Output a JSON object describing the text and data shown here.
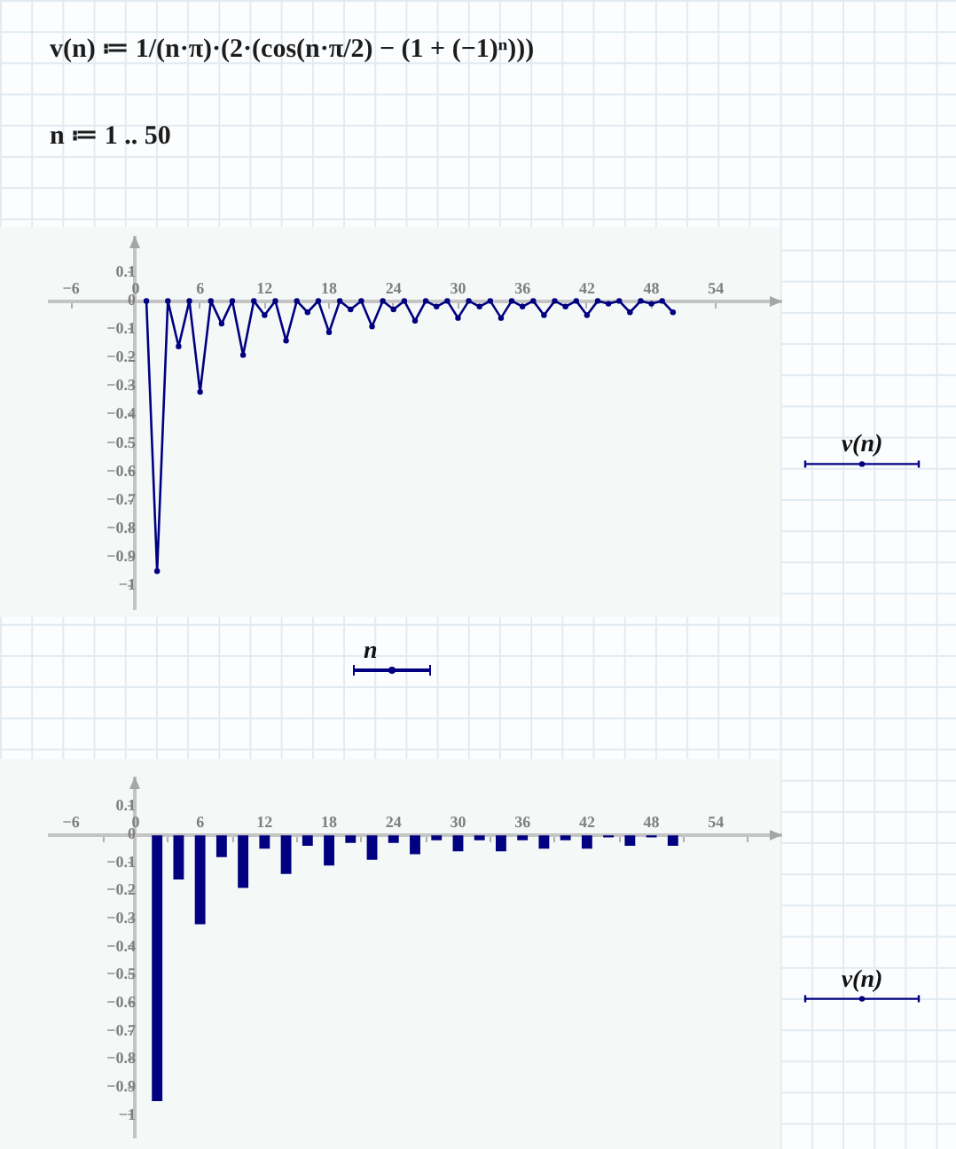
{
  "chart_data": [
    {
      "type": "line",
      "annotations": [
        "v(n) ≔ 1/(n·π)·(2·(cos(n·π/2) − (1 + (−1)ⁿ)))",
        "n ≔ 1 .. 50"
      ],
      "xlabel": "n",
      "legend": "right",
      "marker": "circle",
      "x": [
        1,
        2,
        3,
        4,
        5,
        6,
        7,
        8,
        9,
        10,
        11,
        12,
        13,
        14,
        15,
        16,
        17,
        18,
        19,
        20,
        21,
        22,
        23,
        24,
        25,
        26,
        27,
        28,
        29,
        30,
        31,
        32,
        33,
        34,
        35,
        36,
        37,
        38,
        39,
        40,
        41,
        42,
        43,
        44,
        45,
        46,
        47,
        48,
        49,
        50
      ],
      "series": [
        {
          "name": "v(n)",
          "color": "#000080",
          "values": [
            0,
            -0.95,
            0,
            -0.16,
            0,
            -0.32,
            0,
            -0.08,
            0,
            -0.19,
            0,
            -0.05,
            0,
            -0.14,
            0,
            -0.04,
            0,
            -0.11,
            0,
            -0.03,
            0,
            -0.09,
            0,
            -0.03,
            0,
            -0.07,
            0,
            -0.02,
            0,
            -0.06,
            0,
            -0.02,
            0,
            -0.06,
            0,
            -0.02,
            0,
            -0.05,
            0,
            -0.02,
            0,
            -0.05,
            0,
            -0.01,
            0,
            -0.04,
            0,
            -0.01,
            0,
            -0.04
          ]
        }
      ],
      "xlim": [
        -8,
        60
      ],
      "xticks": [
        -6,
        0,
        6,
        12,
        18,
        24,
        30,
        36,
        42,
        48,
        54
      ],
      "ylim": [
        -1.08,
        0.22
      ],
      "yticks": [
        0.1,
        0,
        -0.1,
        -0.2,
        -0.3,
        -0.4,
        -0.5,
        -0.6,
        -0.7,
        -0.8,
        -0.9,
        -1
      ]
    },
    {
      "type": "bar",
      "legend": "right",
      "x": [
        1,
        2,
        3,
        4,
        5,
        6,
        7,
        8,
        9,
        10,
        11,
        12,
        13,
        14,
        15,
        16,
        17,
        18,
        19,
        20,
        21,
        22,
        23,
        24,
        25,
        26,
        27,
        28,
        29,
        30,
        31,
        32,
        33,
        34,
        35,
        36,
        37,
        38,
        39,
        40,
        41,
        42,
        43,
        44,
        45,
        46,
        47,
        48,
        49,
        50
      ],
      "series": [
        {
          "name": "v(n)",
          "color": "#000080",
          "values": [
            0,
            -0.95,
            0,
            -0.16,
            0,
            -0.32,
            0,
            -0.08,
            0,
            -0.19,
            0,
            -0.05,
            0,
            -0.14,
            0,
            -0.04,
            0,
            -0.11,
            0,
            -0.03,
            0,
            -0.09,
            0,
            -0.03,
            0,
            -0.07,
            0,
            -0.02,
            0,
            -0.06,
            0,
            -0.02,
            0,
            -0.06,
            0,
            -0.02,
            0,
            -0.05,
            0,
            -0.02,
            0,
            -0.05,
            0,
            -0.01,
            0,
            -0.04,
            0,
            -0.01,
            0,
            -0.04
          ]
        }
      ],
      "xlim": [
        -8,
        60
      ],
      "xticks": [
        -6,
        0,
        6,
        12,
        18,
        24,
        30,
        36,
        42,
        48,
        54
      ],
      "ylim": [
        -1.08,
        0.2
      ],
      "yticks": [
        0.1,
        0,
        -0.1,
        -0.2,
        -0.3,
        -0.4,
        -0.5,
        -0.6,
        -0.7,
        -0.8,
        -0.9,
        -1
      ]
    }
  ]
}
